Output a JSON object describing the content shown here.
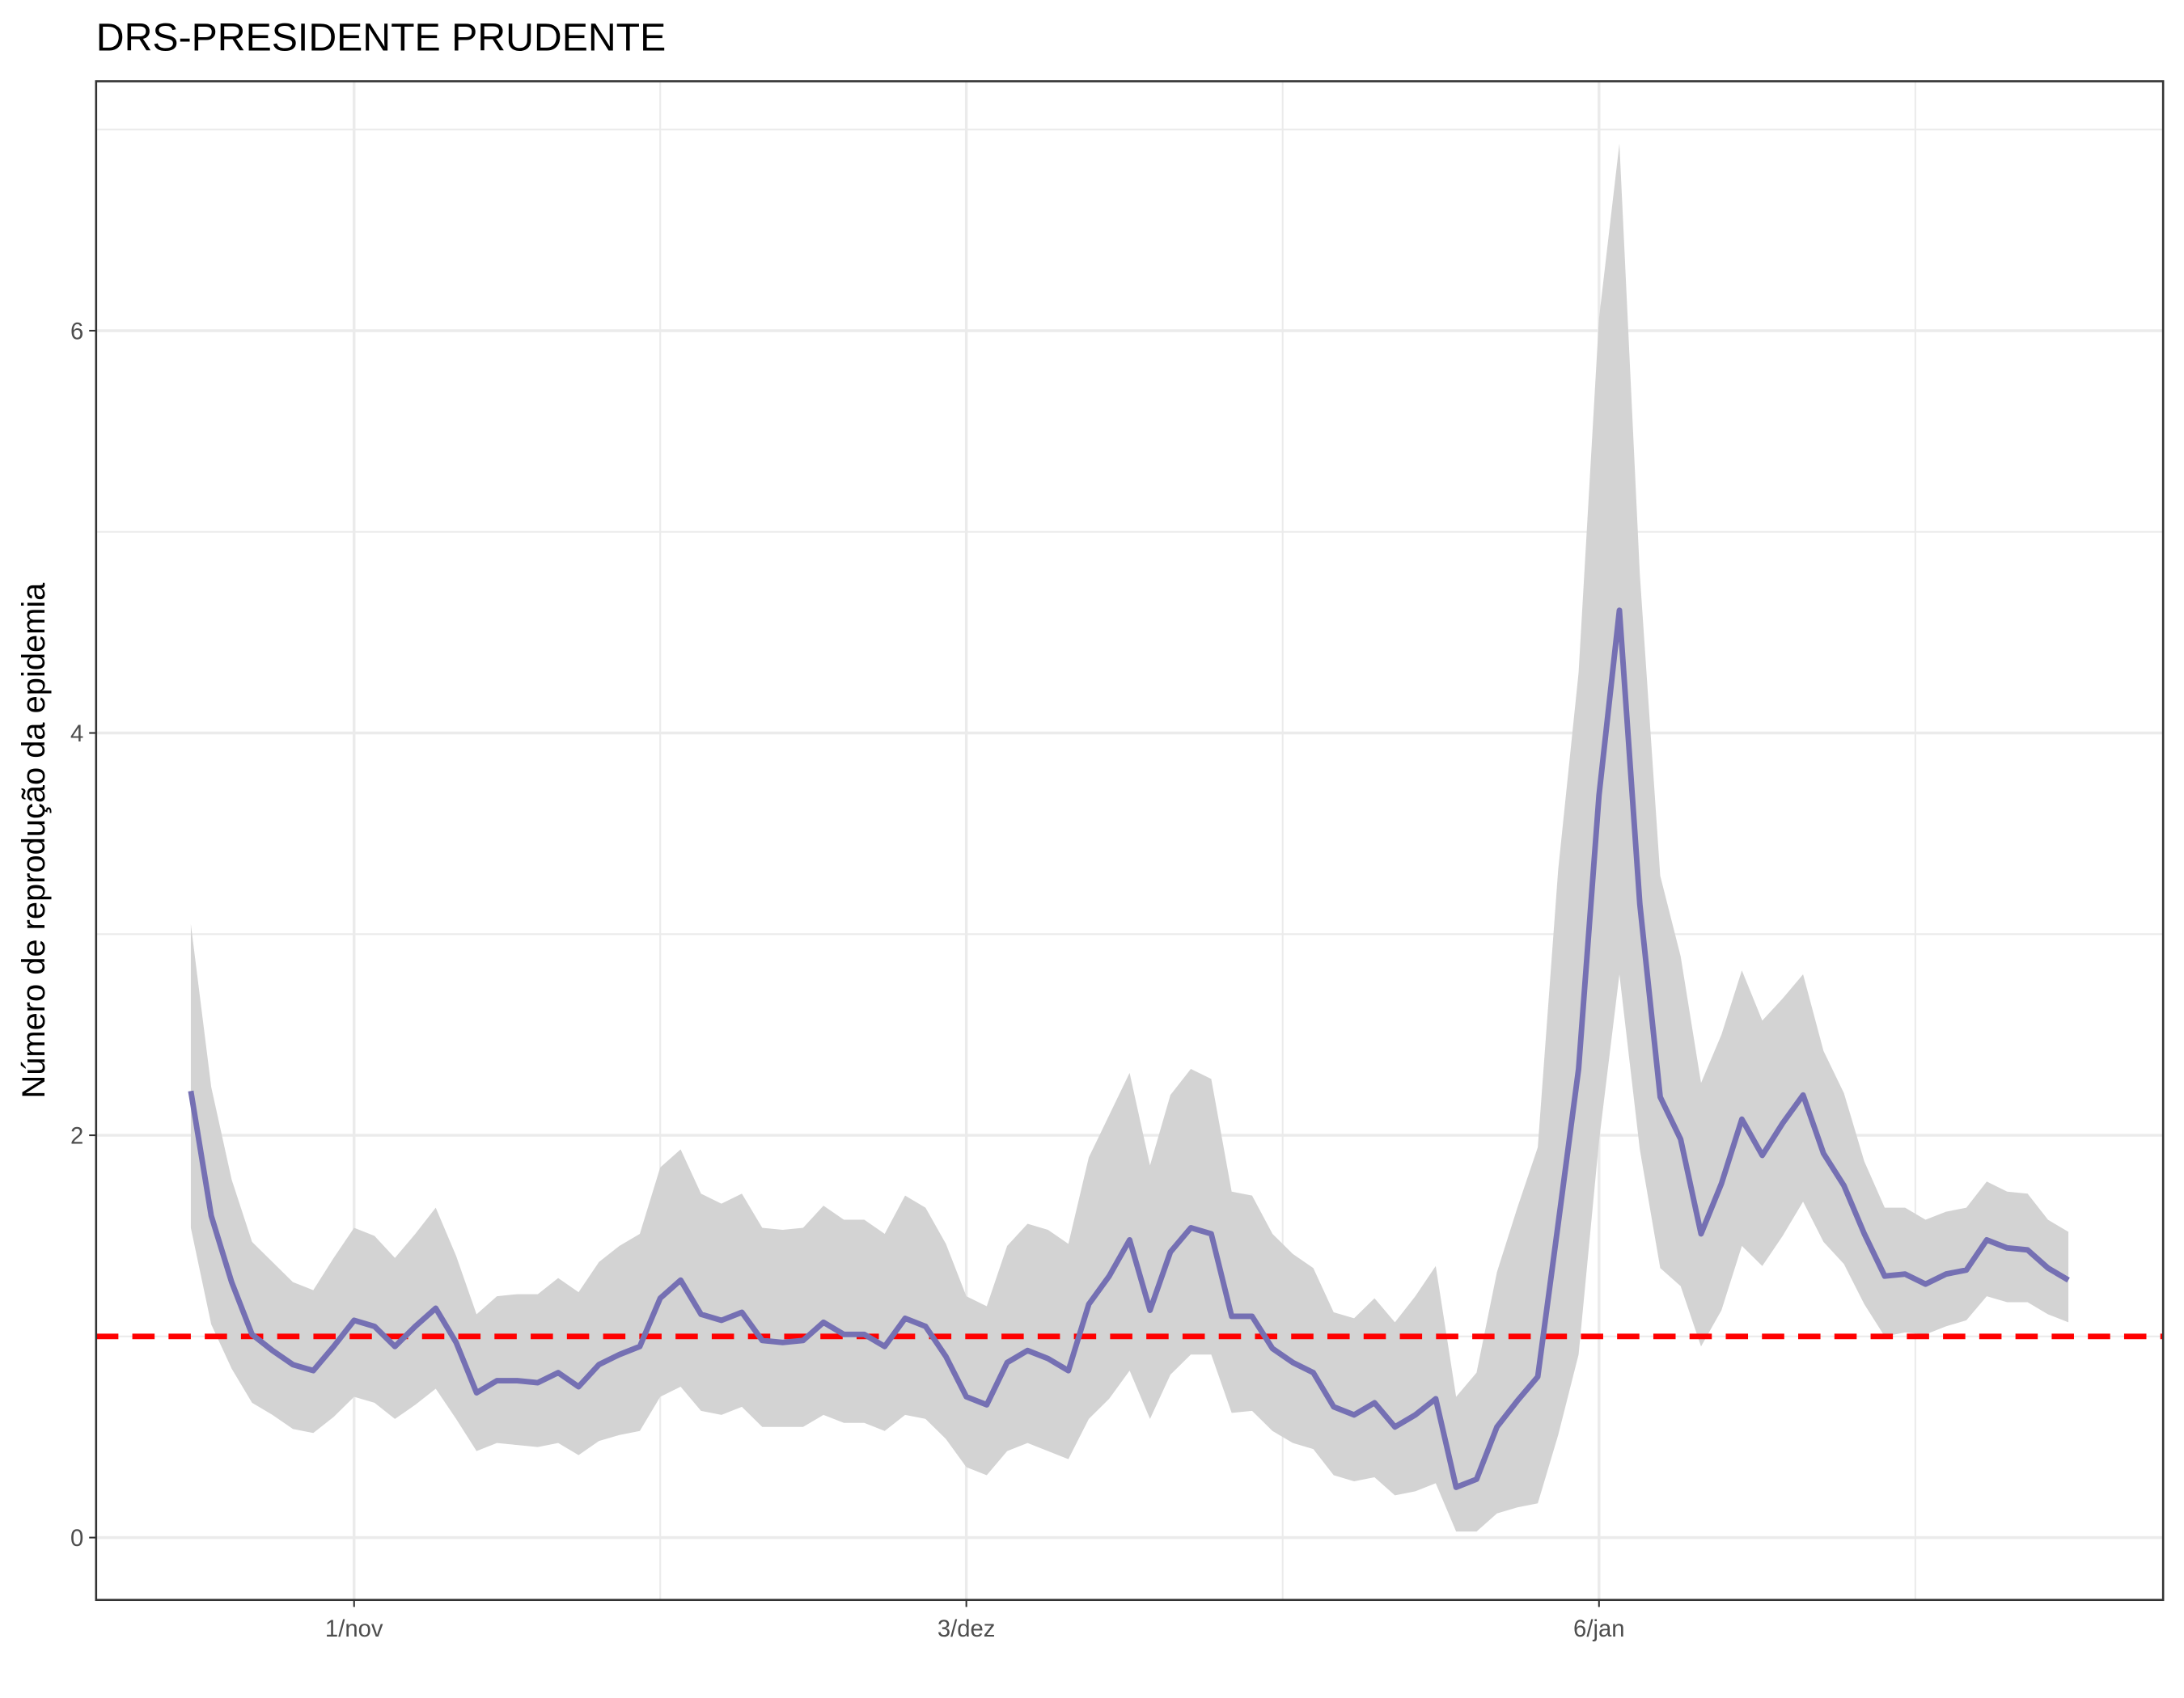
{
  "chart_data": {
    "type": "line",
    "title": "DRS-PRESIDENTE PRUDENTE",
    "ylabel": "Número de reprodução da epidemia",
    "categories": [
      null,
      null,
      null,
      null,
      null,
      null,
      null,
      null,
      "1/nov",
      null,
      null,
      null,
      null,
      null,
      null,
      null,
      null,
      null,
      null,
      null,
      null,
      null,
      null,
      null,
      null,
      null,
      null,
      null,
      null,
      null,
      null,
      null,
      null,
      null,
      null,
      null,
      null,
      null,
      "3/dez",
      null,
      null,
      null,
      null,
      null,
      null,
      null,
      null,
      null,
      null,
      null,
      null,
      null,
      null,
      null,
      null,
      null,
      null,
      null,
      null,
      null,
      null,
      null,
      null,
      null,
      null,
      null,
      null,
      null,
      null,
      "6/jan",
      null,
      null,
      null,
      null,
      null,
      null,
      null,
      null,
      null,
      null,
      null,
      null,
      null,
      null,
      null,
      null,
      null,
      null,
      null,
      null,
      null,
      null,
      null
    ],
    "values": [
      2.22,
      1.6,
      1.27,
      1.01,
      0.93,
      0.86,
      0.83,
      0.95,
      1.08,
      1.05,
      0.95,
      1.05,
      1.14,
      0.97,
      0.72,
      0.78,
      0.78,
      0.77,
      0.82,
      0.75,
      0.86,
      0.91,
      0.95,
      1.19,
      1.28,
      1.11,
      1.08,
      1.12,
      0.98,
      0.97,
      0.98,
      1.07,
      1.01,
      1.01,
      0.95,
      1.09,
      1.05,
      0.9,
      0.7,
      0.66,
      0.87,
      0.93,
      0.89,
      0.83,
      1.16,
      1.3,
      1.48,
      1.13,
      1.42,
      1.54,
      1.51,
      1.1,
      1.1,
      0.94,
      0.87,
      0.82,
      0.65,
      0.61,
      0.67,
      0.55,
      0.61,
      0.69,
      0.25,
      0.29,
      0.55,
      0.68,
      0.8,
      1.56,
      2.33,
      3.69,
      4.61,
      3.15,
      2.19,
      1.98,
      1.51,
      1.76,
      2.08,
      1.9,
      2.06,
      2.2,
      1.91,
      1.75,
      1.51,
      1.3,
      1.31,
      1.26,
      1.31,
      1.33,
      1.48,
      1.44,
      1.43,
      1.34,
      1.28
    ],
    "upper": [
      3.05,
      2.24,
      1.78,
      1.47,
      1.37,
      1.27,
      1.23,
      1.39,
      1.54,
      1.5,
      1.39,
      1.51,
      1.64,
      1.4,
      1.11,
      1.2,
      1.21,
      1.21,
      1.29,
      1.22,
      1.37,
      1.45,
      1.51,
      1.84,
      1.93,
      1.71,
      1.66,
      1.71,
      1.54,
      1.53,
      1.54,
      1.65,
      1.58,
      1.58,
      1.51,
      1.7,
      1.64,
      1.46,
      1.2,
      1.15,
      1.45,
      1.56,
      1.53,
      1.46,
      1.89,
      2.1,
      2.31,
      1.85,
      2.2,
      2.33,
      2.28,
      1.72,
      1.7,
      1.51,
      1.41,
      1.34,
      1.12,
      1.09,
      1.19,
      1.07,
      1.2,
      1.35,
      0.7,
      0.82,
      1.32,
      1.64,
      1.94,
      3.32,
      4.3,
      6.06,
      6.93,
      4.79,
      3.29,
      2.89,
      2.26,
      2.5,
      2.82,
      2.57,
      2.68,
      2.8,
      2.42,
      2.21,
      1.87,
      1.64,
      1.64,
      1.58,
      1.62,
      1.64,
      1.77,
      1.72,
      1.71,
      1.58,
      1.52
    ],
    "lower": [
      1.54,
      1.06,
      0.84,
      0.67,
      0.61,
      0.54,
      0.52,
      0.6,
      0.7,
      0.67,
      0.59,
      0.66,
      0.74,
      0.59,
      0.43,
      0.47,
      0.46,
      0.45,
      0.47,
      0.41,
      0.48,
      0.51,
      0.53,
      0.7,
      0.75,
      0.63,
      0.61,
      0.65,
      0.55,
      0.55,
      0.55,
      0.61,
      0.57,
      0.57,
      0.53,
      0.61,
      0.59,
      0.49,
      0.35,
      0.31,
      0.43,
      0.47,
      0.43,
      0.39,
      0.59,
      0.69,
      0.83,
      0.59,
      0.81,
      0.91,
      0.91,
      0.62,
      0.63,
      0.53,
      0.47,
      0.44,
      0.31,
      0.28,
      0.3,
      0.21,
      0.23,
      0.27,
      0.03,
      0.03,
      0.12,
      0.15,
      0.17,
      0.51,
      0.91,
      1.97,
      2.8,
      1.93,
      1.34,
      1.25,
      0.95,
      1.13,
      1.45,
      1.35,
      1.5,
      1.67,
      1.47,
      1.36,
      1.16,
      1.0,
      1.02,
      1.01,
      1.05,
      1.08,
      1.2,
      1.17,
      1.17,
      1.11,
      1.07
    ],
    "color": "#7570b3",
    "band_color": "#d3d3d3",
    "hline": 1,
    "hline_color": "#ff0000",
    "ylim": [
      -0.31,
      7.24
    ],
    "yticks": [
      0,
      2,
      4,
      6
    ],
    "y_minor_grid": [
      1,
      3,
      5,
      7
    ],
    "grid": true
  }
}
